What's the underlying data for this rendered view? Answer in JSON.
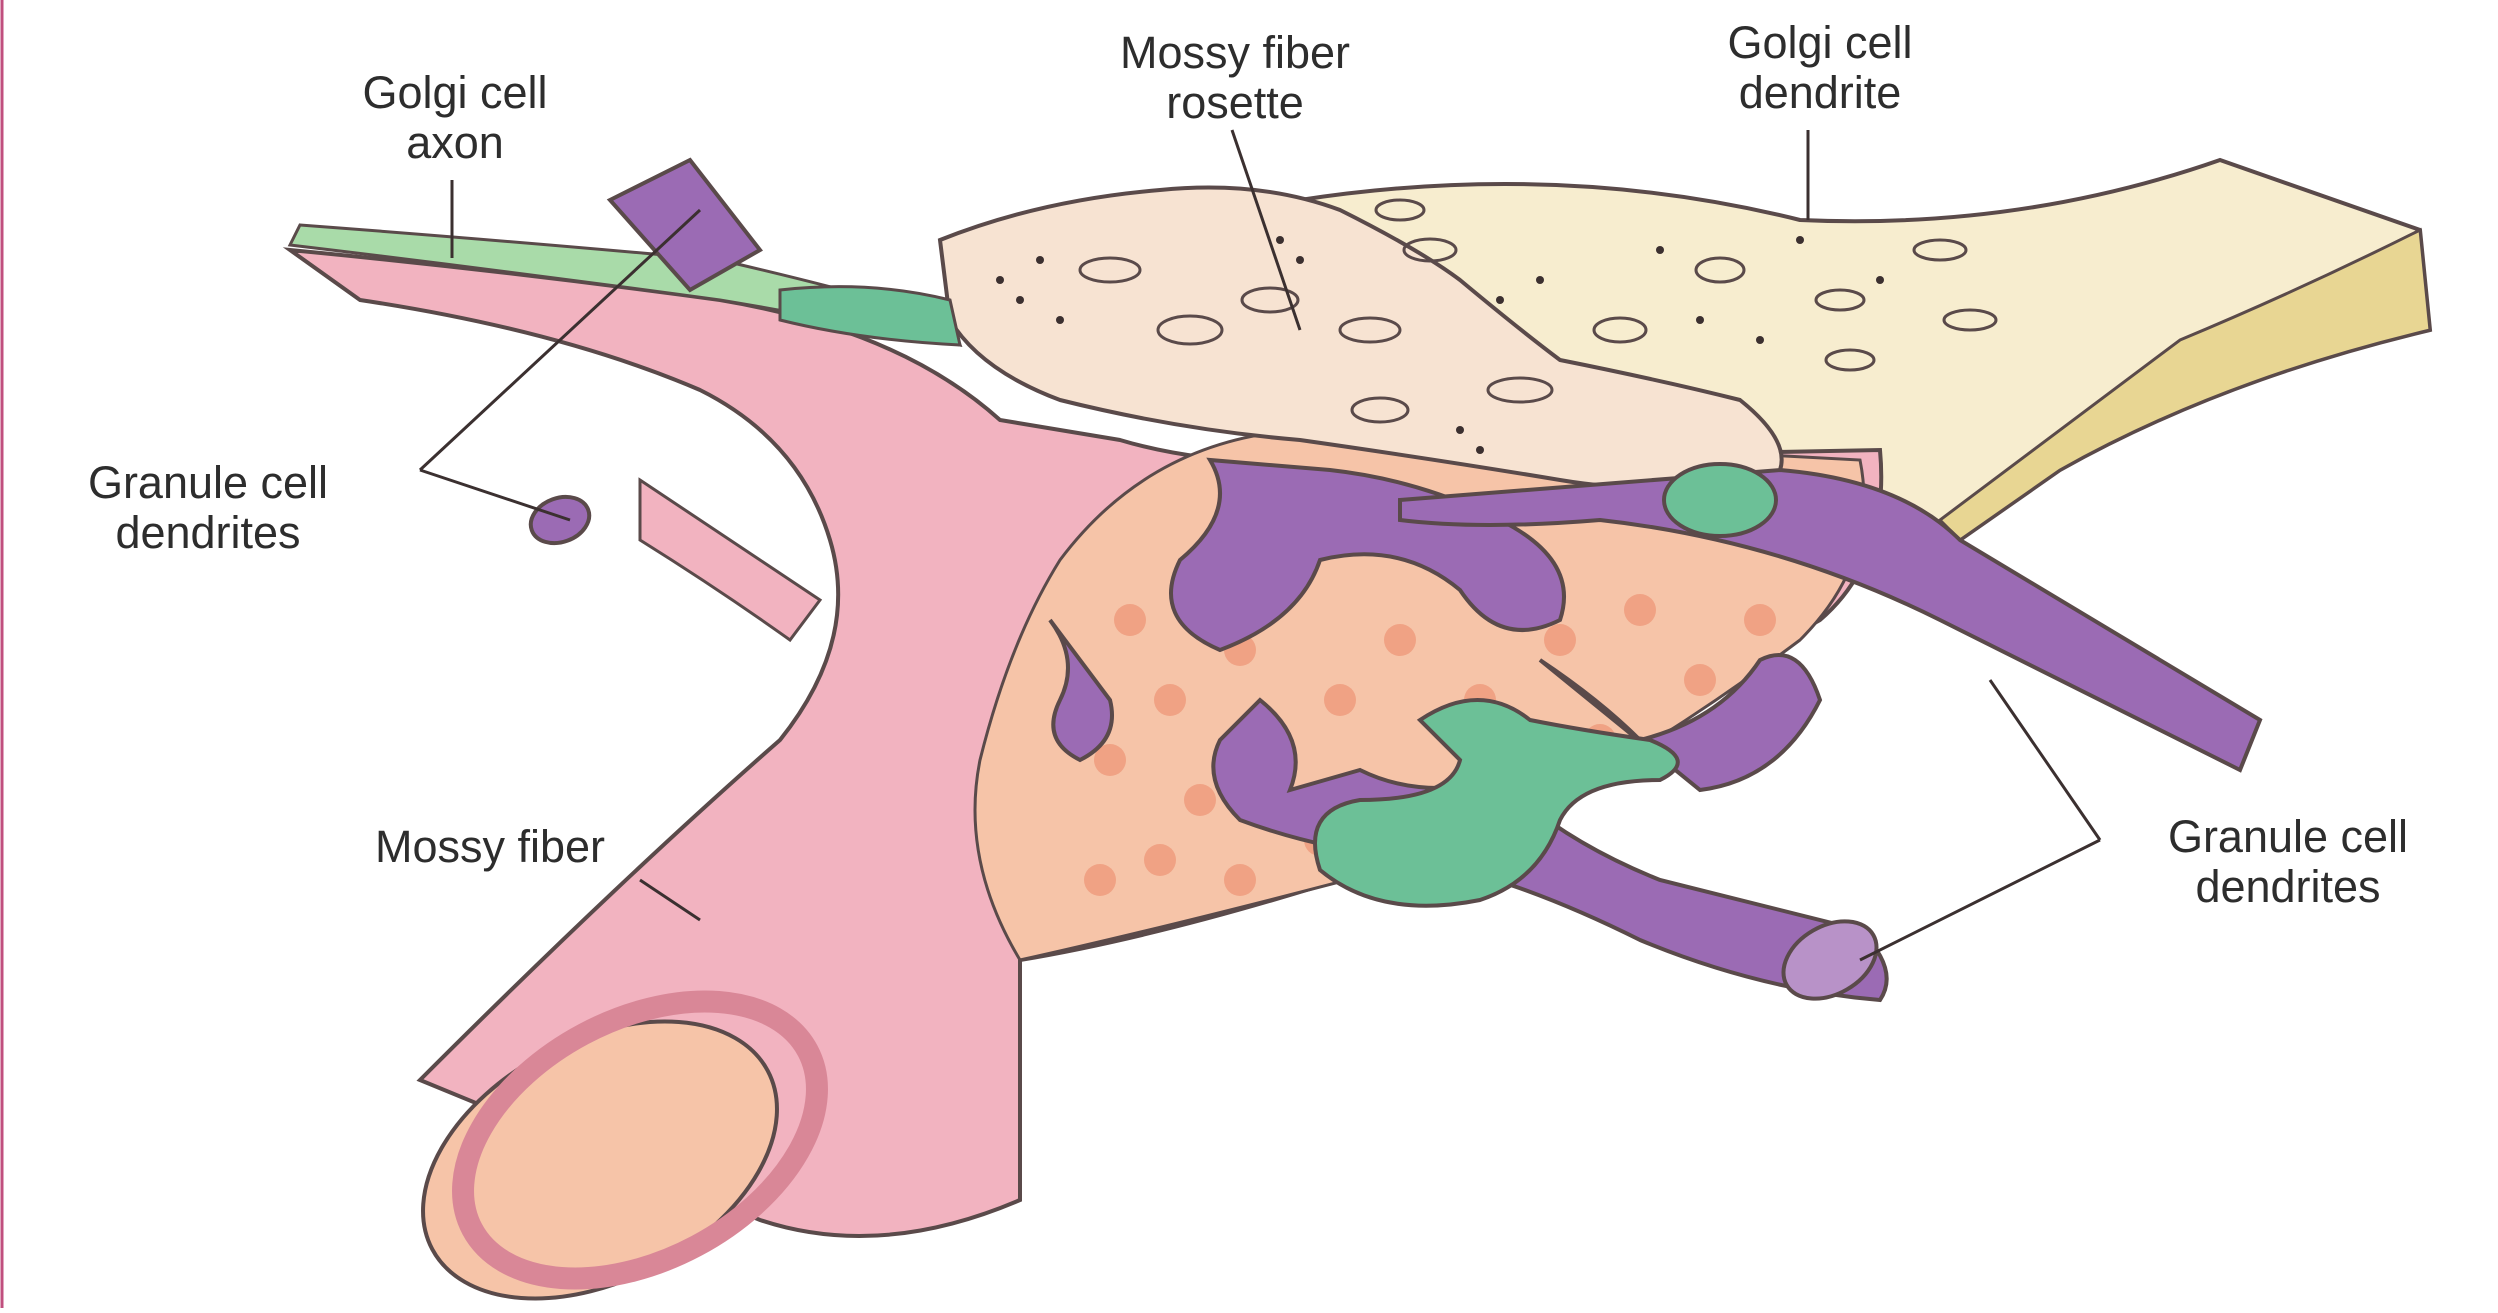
{
  "labels": {
    "golgi_axon": {
      "line1": "Golgi cell",
      "line2": "axon"
    },
    "rosette": {
      "line1": "Mossy fiber",
      "line2": "rosette"
    },
    "golgi_dendrite": {
      "line1": "Golgi cell",
      "line2": "dendrite"
    },
    "granule_left": {
      "line1": "Granule cell",
      "line2": "dendrites"
    },
    "mossy_fiber": {
      "line1": "Mossy fiber"
    },
    "granule_right": {
      "line1": "Granule cell",
      "line2": "dendrites"
    }
  },
  "colors": {
    "mossy_fiber": "#f2b3c0",
    "mossy_fiber_dark": "#d98797",
    "rosette_interior": "#f6c4a8",
    "vesicles": "#f0a284",
    "granule_dendrites": "#9b6bb4",
    "golgi_axon": "#a9dba9",
    "golgi_axon_terminal": "#6cc097",
    "golgi_dendrite": "#f7edcf",
    "golgi_dendrite_side": "#e8d693",
    "outline": "#5a4a4a",
    "stray_margin_line": "#c04f7e"
  }
}
